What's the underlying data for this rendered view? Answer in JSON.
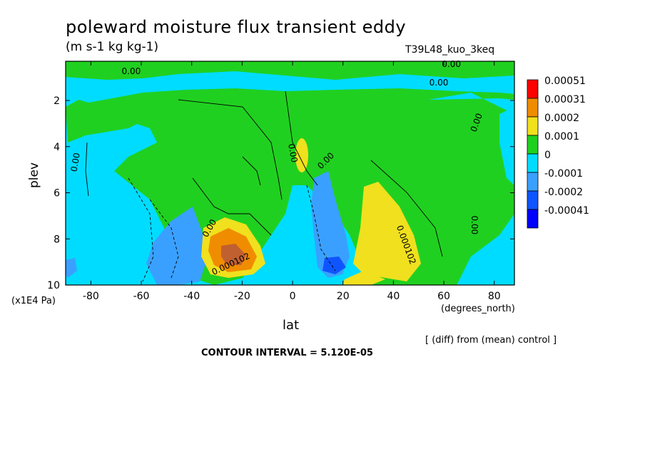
{
  "chart_data": {
    "type": "contour",
    "title": "poleward moisture flux transient eddy",
    "units": "(m s-1 kg kg-1)",
    "run_id": "T39L48_kuo_3keq",
    "xlabel": "lat",
    "x_units": "(degrees_north)",
    "ylabel": "plev",
    "y_units": "(x1E4 Pa)",
    "xlim": [
      -90,
      88
    ],
    "ylim": [
      10,
      0.3
    ],
    "x_ticks": [
      -80,
      -60,
      -40,
      -20,
      0,
      20,
      40,
      60,
      80
    ],
    "y_ticks": [
      2,
      4,
      6,
      8,
      10
    ],
    "note": "[ (diff) from (mean) control ]",
    "contour_interval": "CONTOUR INTERVAL = 5.120E-05",
    "legend": {
      "placement": "right",
      "entries": [
        {
          "label": "0.00051",
          "color": "#ff0000"
        },
        {
          "label": "0.00031",
          "color": "#f08c00"
        },
        {
          "label": "0.0002",
          "color": "#f0e01e"
        },
        {
          "label": "0.0001",
          "color": "#20d020"
        },
        {
          "label": "0",
          "color": "#00dcff"
        },
        {
          "label": "-0.0001",
          "color": "#3aa0ff"
        },
        {
          "label": "-0.0002",
          "color": "#0f55ff"
        },
        {
          "label": "-0.00041",
          "color": "#0000ff"
        }
      ]
    },
    "contour_labels": [
      {
        "text": "0.00",
        "x": -64,
        "y": 0.85,
        "rot": 0
      },
      {
        "text": "0.00",
        "x": 63,
        "y": 0.55,
        "rot": 0
      },
      {
        "text": "0.00",
        "x": 58,
        "y": 1.35,
        "rot": 0
      },
      {
        "text": "0.00",
        "x": -85,
        "y": 4.7,
        "rot": -80
      },
      {
        "text": "0.00",
        "x": -1,
        "y": 4.3,
        "rot": 80
      },
      {
        "text": "0.00",
        "x": 14,
        "y": 4.7,
        "rot": -45
      },
      {
        "text": "0.00",
        "x": 74,
        "y": 3.0,
        "rot": -70
      },
      {
        "text": "0.00",
        "x": 71,
        "y": 7.4,
        "rot": 90
      },
      {
        "text": "0.00",
        "x": -32,
        "y": 7.6,
        "rot": -60
      },
      {
        "text": "0.000102",
        "x": 44,
        "y": 8.3,
        "rot": 70
      },
      {
        "text": "0.000102",
        "x": -24,
        "y": 9.2,
        "rot": -25
      }
    ]
  }
}
